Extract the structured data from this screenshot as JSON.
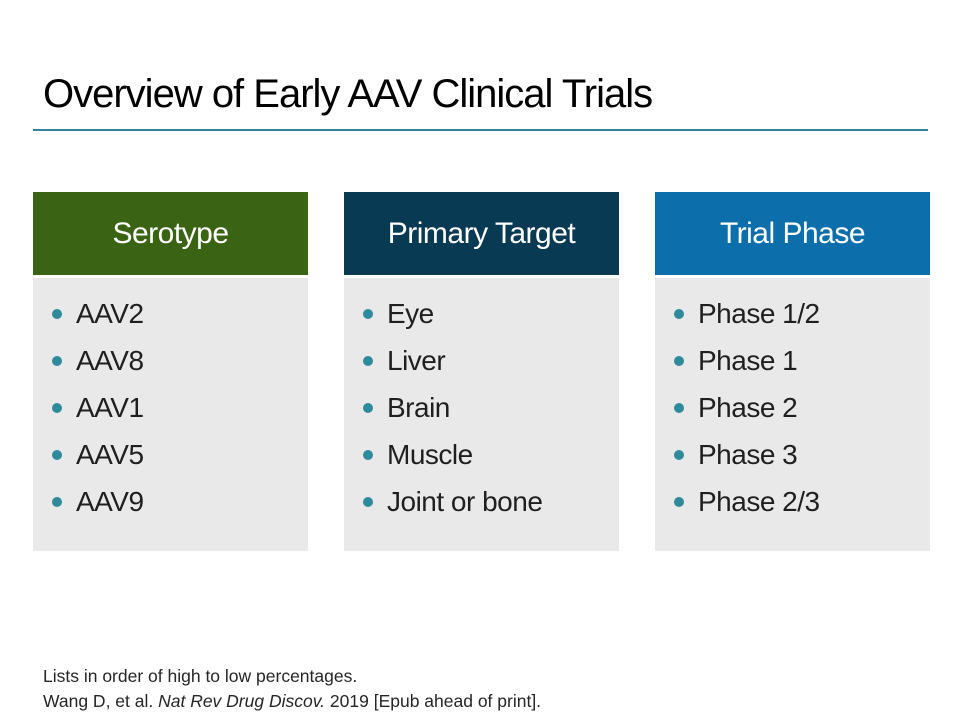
{
  "slide": {
    "title": "Overview of Early AAV Clinical Trials",
    "columns": [
      {
        "header": "Serotype",
        "header_color": "#3a6313",
        "items": [
          "AAV2",
          "AAV8",
          "AAV1",
          "AAV5",
          "AAV9"
        ]
      },
      {
        "header": "Primary Target",
        "header_color": "#093a54",
        "items": [
          "Eye",
          "Liver",
          "Brain",
          "Muscle",
          "Joint or bone"
        ]
      },
      {
        "header": "Trial Phase",
        "header_color": "#0c6fab",
        "items": [
          "Phase 1/2",
          "Phase 1",
          "Phase 2",
          "Phase 3",
          "Phase 2/3"
        ]
      }
    ],
    "footer": {
      "line1": "Lists in order of high to low percentages.",
      "line2_prefix": "Wang D, et al. ",
      "line2_italic": "Nat Rev Drug Discov.",
      "line2_suffix": " 2019 [Epub ahead of print]."
    },
    "colors": {
      "accent_rule": "#31859b",
      "bullet": "#2f8a9c",
      "list_background": "#e9e9e9",
      "body_text": "#1f1f1f",
      "header_text": "#ffffff"
    }
  }
}
